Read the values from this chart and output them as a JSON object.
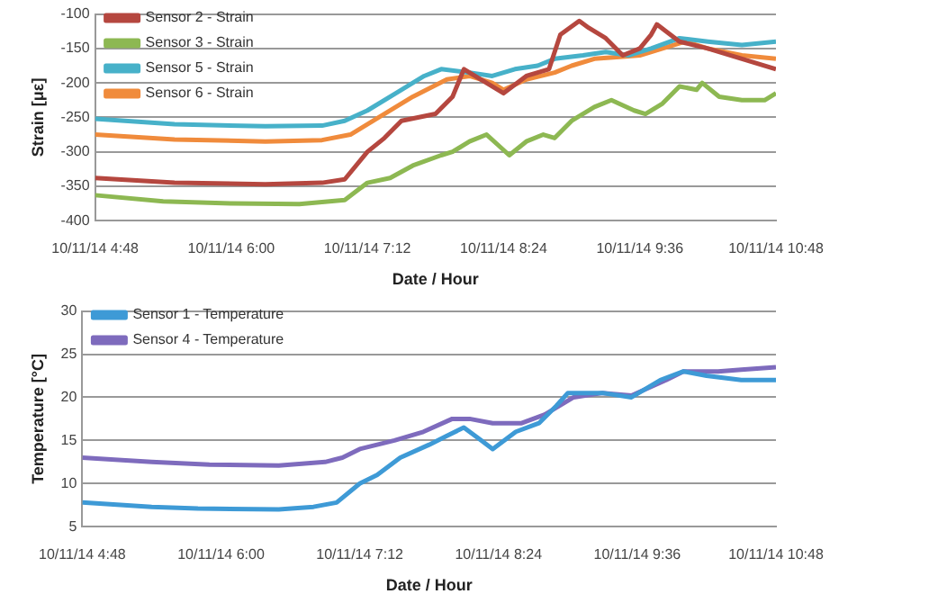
{
  "chart_data": [
    {
      "type": "line",
      "xlabel": "Date / Hour",
      "ylabel": "Strain [με]",
      "xlim": [
        "--10-11T04:48",
        "--10-11T10:48"
      ],
      "xticks": [
        {
          "value": "--10-11T04:48",
          "label": "10/11/14 4:48"
        },
        {
          "value": "--10-11T06:00",
          "label": "10/11/14 6:00"
        },
        {
          "value": "--10-11T07:12",
          "label": "10/11/14 7:12"
        },
        {
          "value": "--10-11T08:24",
          "label": "10/11/14 8:24"
        },
        {
          "value": "--10-11T09:36",
          "label": "10/11/14 9:36"
        },
        {
          "value": "--10-11T10:48",
          "label": "10/11/14 10:48"
        }
      ],
      "ylim": [
        -400,
        -100
      ],
      "yticks": [
        -400,
        -350,
        -300,
        -250,
        -200,
        -150,
        -100
      ],
      "grid": "y",
      "legend": "top left",
      "marker": "none",
      "line_style": "solid",
      "series": [
        {
          "name": "Sensor 2 - Strain",
          "color": "#b5473f",
          "x": [
            "--10-11T04:48",
            "--10-11T05:30",
            "--10-11T06:18",
            "--10-11T06:48",
            "--10-11T07:00",
            "--10-11T07:12",
            "--10-11T07:21",
            "--10-11T07:30",
            "--10-11T07:48",
            "--10-11T07:57",
            "--10-11T08:03",
            "--10-11T08:12",
            "--10-11T08:24",
            "--10-11T08:36",
            "--10-11T08:48",
            "--10-11T08:54",
            "--10-11T09:04",
            "--10-11T09:09",
            "--10-11T09:18",
            "--10-11T09:27",
            "--10-11T09:36",
            "--10-11T09:42",
            "--10-11T09:45",
            "--10-11T09:57",
            "--10-11T10:12",
            "--10-11T10:30",
            "--10-11T10:48"
          ],
          "values": [
            -338,
            -345,
            -347,
            -345,
            -340,
            -300,
            -280,
            -255,
            -245,
            -220,
            -180,
            -195,
            -215,
            -190,
            -180,
            -130,
            -110,
            -120,
            -135,
            -160,
            -150,
            -130,
            -115,
            -140,
            -150,
            -165,
            -180
          ]
        },
        {
          "name": "Sensor 3 - Strain",
          "color": "#8db852",
          "x": [
            "--10-11T04:48",
            "--10-11T05:24",
            "--10-11T06:00",
            "--10-11T06:36",
            "--10-11T07:00",
            "--10-11T07:12",
            "--10-11T07:24",
            "--10-11T07:36",
            "--10-11T07:51",
            "--10-11T07:57",
            "--10-11T08:06",
            "--10-11T08:15",
            "--10-11T08:21",
            "--10-11T08:27",
            "--10-11T08:36",
            "--10-11T08:45",
            "--10-11T08:51",
            "--10-11T09:00",
            "--10-11T09:12",
            "--10-11T09:21",
            "--10-11T09:33",
            "--10-11T09:39",
            "--10-11T09:48",
            "--10-11T09:57",
            "--10-11T10:06",
            "--10-11T10:09",
            "--10-11T10:18",
            "--10-11T10:30",
            "--10-11T10:42",
            "--10-11T10:48"
          ],
          "values": [
            -363,
            -372,
            -375,
            -376,
            -370,
            -345,
            -338,
            -320,
            -305,
            -300,
            -285,
            -275,
            -290,
            -305,
            -285,
            -275,
            -280,
            -255,
            -235,
            -225,
            -240,
            -245,
            -230,
            -205,
            -210,
            -200,
            -220,
            -225,
            -225,
            -215
          ]
        },
        {
          "name": "Sensor 5 - Strain",
          "color": "#47b1c9",
          "x": [
            "--10-11T04:48",
            "--10-11T05:30",
            "--10-11T06:18",
            "--10-11T06:48",
            "--10-11T07:00",
            "--10-11T07:12",
            "--10-11T07:27",
            "--10-11T07:42",
            "--10-11T07:51",
            "--10-11T08:06",
            "--10-11T08:18",
            "--10-11T08:30",
            "--10-11T08:42",
            "--10-11T08:51",
            "--10-11T09:06",
            "--10-11T09:18",
            "--10-11T09:30",
            "--10-11T09:42",
            "--10-11T09:57",
            "--10-11T10:12",
            "--10-11T10:30",
            "--10-11T10:48"
          ],
          "values": [
            -252,
            -260,
            -263,
            -262,
            -255,
            -240,
            -215,
            -190,
            -180,
            -185,
            -190,
            -180,
            -175,
            -165,
            -160,
            -155,
            -160,
            -150,
            -135,
            -140,
            -145,
            -140
          ]
        },
        {
          "name": "Sensor 6 - Strain",
          "color": "#f08b3c",
          "x": [
            "--10-11T04:48",
            "--10-11T05:30",
            "--10-11T06:18",
            "--10-11T06:48",
            "--10-11T07:03",
            "--10-11T07:18",
            "--10-11T07:36",
            "--10-11T07:54",
            "--10-11T08:06",
            "--10-11T08:18",
            "--10-11T08:24",
            "--10-11T08:36",
            "--10-11T08:51",
            "--10-11T09:00",
            "--10-11T09:12",
            "--10-11T09:27",
            "--10-11T09:36",
            "--10-11T10:00",
            "--10-11T10:12",
            "--10-11T10:30",
            "--10-11T10:48"
          ],
          "values": [
            -275,
            -282,
            -285,
            -283,
            -275,
            -250,
            -220,
            -195,
            -190,
            -200,
            -210,
            -195,
            -185,
            -175,
            -165,
            -162,
            -160,
            -140,
            -150,
            -160,
            -165
          ]
        }
      ]
    },
    {
      "type": "line",
      "xlabel": "Date / Hour",
      "ylabel": "Temperature [°C]",
      "xlim": [
        "--10-11T04:48",
        "--10-11T10:48"
      ],
      "xticks": [
        {
          "value": "--10-11T04:48",
          "label": "10/11/14 4:48"
        },
        {
          "value": "--10-11T06:00",
          "label": "10/11/14 6:00"
        },
        {
          "value": "--10-11T07:12",
          "label": "10/11/14 7:12"
        },
        {
          "value": "--10-11T08:24",
          "label": "10/11/14 8:24"
        },
        {
          "value": "--10-11T09:36",
          "label": "10/11/14 9:36"
        },
        {
          "value": "--10-11T10:48",
          "label": "10/11/14 10:48"
        }
      ],
      "ylim": [
        5,
        30
      ],
      "yticks": [
        5,
        10,
        15,
        20,
        25,
        30
      ],
      "grid": "y",
      "legend": "top left",
      "marker": "none",
      "line_style": "solid",
      "series": [
        {
          "name": "Sensor 1 - Temperature",
          "color": "#3e9ad6",
          "x": [
            "--10-11T04:48",
            "--10-11T05:24",
            "--10-11T05:48",
            "--10-11T06:30",
            "--10-11T06:48",
            "--10-11T07:00",
            "--10-11T07:12",
            "--10-11T07:21",
            "--10-11T07:33",
            "--10-11T07:48",
            "--10-11T07:57",
            "--10-11T08:06",
            "--10-11T08:15",
            "--10-11T08:21",
            "--10-11T08:33",
            "--10-11T08:45",
            "--10-11T08:54",
            "--10-11T09:00",
            "--10-11T09:18",
            "--10-11T09:33",
            "--10-11T09:48",
            "--10-11T10:00",
            "--10-11T10:12",
            "--10-11T10:30",
            "--10-11T10:48"
          ],
          "values": [
            7.8,
            7.3,
            7.1,
            7.0,
            7.3,
            7.8,
            10,
            11,
            13,
            14.5,
            15.5,
            16.5,
            15,
            14,
            16,
            17,
            19,
            20.5,
            20.5,
            20,
            22,
            23,
            22.5,
            22,
            22
          ]
        },
        {
          "name": "Sensor 4 - Temperature",
          "color": "#7e6bbd",
          "x": [
            "--10-11T04:48",
            "--10-11T05:24",
            "--10-11T05:54",
            "--10-11T06:30",
            "--10-11T06:54",
            "--10-11T07:03",
            "--10-11T07:12",
            "--10-11T07:30",
            "--10-11T07:45",
            "--10-11T08:00",
            "--10-11T08:09",
            "--10-11T08:21",
            "--10-11T08:36",
            "--10-11T08:48",
            "--10-11T09:03",
            "--10-11T09:18",
            "--10-11T09:33",
            "--10-11T09:51",
            "--10-11T10:00",
            "--10-11T10:18",
            "--10-11T10:30",
            "--10-11T10:48"
          ],
          "values": [
            13,
            12.5,
            12.2,
            12.1,
            12.5,
            13,
            14,
            15,
            16,
            17.5,
            17.5,
            17,
            17,
            18,
            20,
            20.5,
            20.2,
            22,
            23,
            23,
            23.2,
            23.5
          ]
        }
      ]
    }
  ]
}
